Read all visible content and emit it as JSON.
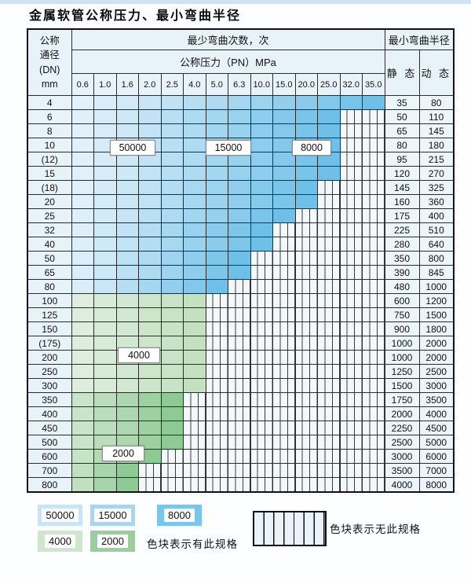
{
  "title": "金属软管公称压力、最小弯曲半径",
  "table": {
    "header": {
      "dn_lines": [
        "公称",
        "通径",
        "(DN)",
        "mm"
      ],
      "cycles_label": "最少弯曲次数，次",
      "pressure_label": "公称压力（PN）MPa",
      "radius_label": "最小弯曲半径",
      "static_label": "静 态",
      "dynamic_label": "动 态",
      "pressures": [
        "0.6",
        "1.0",
        "1.6",
        "2.0",
        "2.5",
        "4.0",
        "5.0",
        "6.3",
        "10.0",
        "15.0",
        "20.0",
        "25.0",
        "32.0",
        "35.0"
      ]
    },
    "rows": [
      {
        "dn": "4",
        "family": "blue",
        "span": 14,
        "static": "35",
        "dynamic": "80"
      },
      {
        "dn": "6",
        "family": "blue",
        "span": 12,
        "static": "50",
        "dynamic": "110"
      },
      {
        "dn": "8",
        "family": "blue",
        "span": 12,
        "static": "65",
        "dynamic": "145"
      },
      {
        "dn": "10",
        "family": "blue",
        "span": 12,
        "static": "80",
        "dynamic": "180"
      },
      {
        "dn": "(12)",
        "family": "blue",
        "span": 12,
        "static": "95",
        "dynamic": "215"
      },
      {
        "dn": "15",
        "family": "blue",
        "span": 12,
        "static": "120",
        "dynamic": "270"
      },
      {
        "dn": "(18)",
        "family": "blue",
        "span": 11,
        "static": "145",
        "dynamic": "325"
      },
      {
        "dn": "20",
        "family": "blue",
        "span": 11,
        "static": "160",
        "dynamic": "360"
      },
      {
        "dn": "25",
        "family": "blue",
        "span": 10,
        "static": "175",
        "dynamic": "400"
      },
      {
        "dn": "32",
        "family": "blue",
        "span": 9,
        "static": "225",
        "dynamic": "510"
      },
      {
        "dn": "40",
        "family": "blue",
        "span": 9,
        "static": "280",
        "dynamic": "640"
      },
      {
        "dn": "50",
        "family": "blue",
        "span": 8,
        "static": "350",
        "dynamic": "800"
      },
      {
        "dn": "65",
        "family": "blue",
        "span": 8,
        "static": "390",
        "dynamic": "845"
      },
      {
        "dn": "80",
        "family": "blue",
        "span": 7,
        "static": "480",
        "dynamic": "1000"
      },
      {
        "dn": "100",
        "family": "green-4000",
        "span": 6,
        "static": "600",
        "dynamic": "1200"
      },
      {
        "dn": "125",
        "family": "green-4000",
        "span": 6,
        "static": "750",
        "dynamic": "1500"
      },
      {
        "dn": "150",
        "family": "green-4000",
        "span": 6,
        "static": "900",
        "dynamic": "1800"
      },
      {
        "dn": "(175)",
        "family": "green-4000",
        "span": 6,
        "static": "1000",
        "dynamic": "2000"
      },
      {
        "dn": "200",
        "family": "green-4000",
        "span": 6,
        "static": "1000",
        "dynamic": "2000"
      },
      {
        "dn": "250",
        "family": "green-4000",
        "span": 6,
        "static": "1250",
        "dynamic": "2500"
      },
      {
        "dn": "300",
        "family": "green-4000",
        "span": 6,
        "static": "1500",
        "dynamic": "3000"
      },
      {
        "dn": "350",
        "family": "green-2000",
        "span": 5,
        "static": "1750",
        "dynamic": "3500"
      },
      {
        "dn": "400",
        "family": "green-2000",
        "span": 5,
        "static": "2000",
        "dynamic": "4000"
      },
      {
        "dn": "450",
        "family": "green-2000",
        "span": 5,
        "static": "2250",
        "dynamic": "4500"
      },
      {
        "dn": "500",
        "family": "green-2000",
        "span": 5,
        "static": "2500",
        "dynamic": "5000"
      },
      {
        "dn": "600",
        "family": "green-2000",
        "span": 4,
        "static": "3000",
        "dynamic": "6000"
      },
      {
        "dn": "700",
        "family": "green-2000",
        "span": 3,
        "static": "3500",
        "dynamic": "7000"
      },
      {
        "dn": "800",
        "family": "green-2000",
        "span": 3,
        "static": "4000",
        "dynamic": "8000"
      }
    ]
  },
  "overlays": [
    {
      "value": "50000"
    },
    {
      "value": "15000"
    },
    {
      "value": "8000"
    },
    {
      "value": "4000"
    },
    {
      "value": "2000"
    }
  ],
  "legend": {
    "has_spec_items": [
      {
        "value": "50000",
        "color": "#cae4f5"
      },
      {
        "value": "15000",
        "color": "#a8d6f0"
      },
      {
        "value": "8000",
        "color": "#7cc5ea"
      },
      {
        "value": "4000",
        "color": "#cfe6ce"
      },
      {
        "value": "2000",
        "color": "#98cf9b"
      }
    ],
    "has_spec_text": "色块表示有此规格",
    "no_spec_text": "色块表示无此规格"
  },
  "colors": {
    "blue_start": "#ecf5fb",
    "blue_end": "#6fc0e8",
    "green4_start": "#e3f0e2",
    "green4_end": "#c3e0c1",
    "green2_start": "#d8ebd8",
    "green2_end": "#8fc994",
    "header_bg": "#e8f2f9",
    "value_bg": "#edf4fa",
    "hatch_line": "#3c3c3c"
  }
}
